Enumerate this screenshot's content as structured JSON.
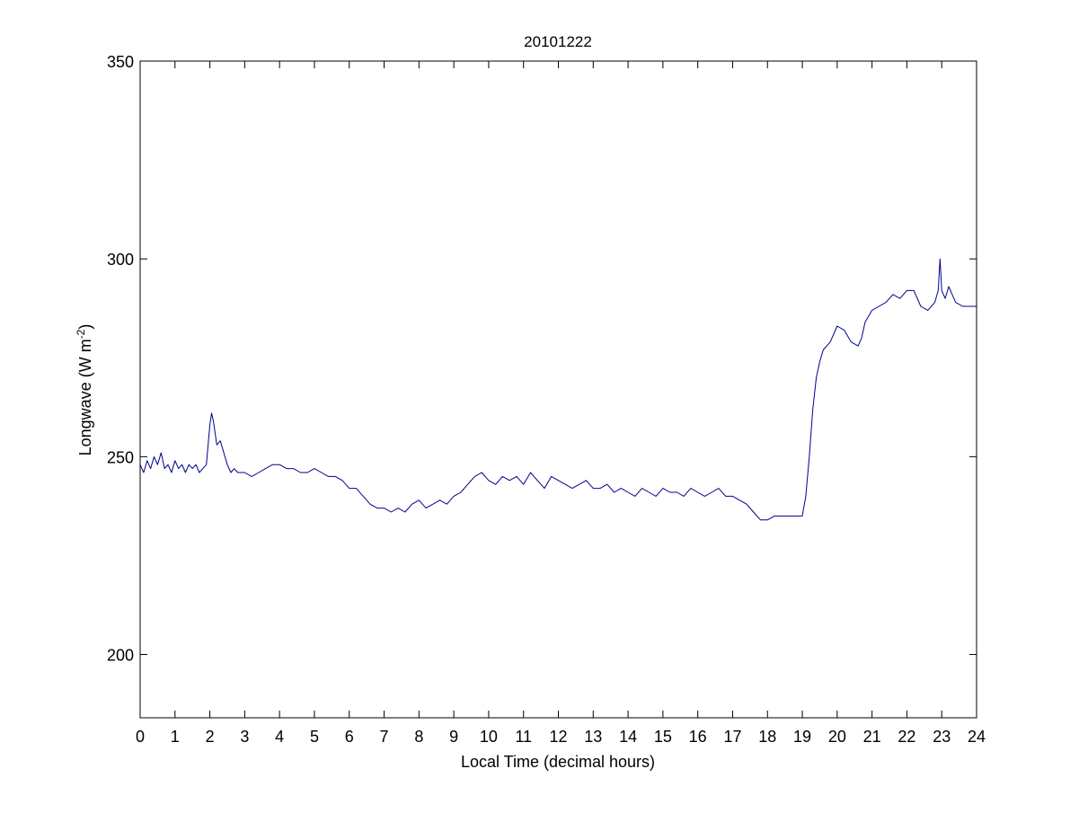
{
  "chart_data": {
    "type": "line",
    "title": "20101222",
    "xlabel": "Local Time (decimal hours)",
    "ylabel_main": "Longwave (W m",
    "ylabel_sup": "-2",
    "ylabel_close": ")",
    "xlim": [
      0,
      24
    ],
    "ylim": [
      184,
      350
    ],
    "xticks": [
      0,
      1,
      2,
      3,
      4,
      5,
      6,
      7,
      8,
      9,
      10,
      11,
      12,
      13,
      14,
      15,
      16,
      17,
      18,
      19,
      20,
      21,
      22,
      23,
      24
    ],
    "yticks": [
      200,
      250,
      300,
      350
    ],
    "grid": false,
    "line_color": "#00008b",
    "series": [
      {
        "x": [
          0,
          0.1,
          0.2,
          0.3,
          0.4,
          0.5,
          0.6,
          0.7,
          0.8,
          0.9,
          1.0,
          1.1,
          1.2,
          1.3,
          1.4,
          1.5,
          1.6,
          1.7,
          1.8,
          1.9,
          2.0,
          2.05,
          2.1,
          2.15,
          2.2,
          2.3,
          2.4,
          2.5,
          2.6,
          2.7,
          2.8,
          3.0,
          3.2,
          3.4,
          3.6,
          3.8,
          4.0,
          4.2,
          4.4,
          4.6,
          4.8,
          5.0,
          5.2,
          5.4,
          5.6,
          5.8,
          6.0,
          6.2,
          6.4,
          6.6,
          6.8,
          7.0,
          7.2,
          7.4,
          7.6,
          7.8,
          8.0,
          8.2,
          8.4,
          8.6,
          8.8,
          9.0,
          9.2,
          9.4,
          9.6,
          9.8,
          10.0,
          10.2,
          10.4,
          10.6,
          10.8,
          11.0,
          11.2,
          11.4,
          11.6,
          11.8,
          12.0,
          12.2,
          12.4,
          12.6,
          12.8,
          13.0,
          13.2,
          13.4,
          13.6,
          13.8,
          14.0,
          14.2,
          14.4,
          14.6,
          14.8,
          15.0,
          15.2,
          15.4,
          15.6,
          15.8,
          16.0,
          16.2,
          16.4,
          16.6,
          16.8,
          17.0,
          17.2,
          17.4,
          17.6,
          17.8,
          18.0,
          18.2,
          18.4,
          18.6,
          18.8,
          19.0,
          19.1,
          19.2,
          19.3,
          19.4,
          19.5,
          19.6,
          19.8,
          20.0,
          20.2,
          20.4,
          20.6,
          20.7,
          20.8,
          21.0,
          21.2,
          21.4,
          21.6,
          21.8,
          22.0,
          22.2,
          22.4,
          22.6,
          22.8,
          22.9,
          22.95,
          23.0,
          23.1,
          23.2,
          23.3,
          23.4,
          23.6,
          23.8,
          24.0
        ],
        "y": [
          248,
          246,
          249,
          247,
          250,
          248,
          251,
          247,
          248,
          246,
          249,
          247,
          248,
          246,
          248,
          247,
          248,
          246,
          247,
          248,
          258,
          261,
          259,
          256,
          253,
          254,
          251,
          248,
          246,
          247,
          246,
          246,
          245,
          246,
          247,
          248,
          248,
          247,
          247,
          246,
          246,
          247,
          246,
          245,
          245,
          244,
          242,
          242,
          240,
          238,
          237,
          237,
          236,
          237,
          236,
          238,
          239,
          237,
          238,
          239,
          238,
          240,
          241,
          243,
          245,
          246,
          244,
          243,
          245,
          244,
          245,
          243,
          246,
          244,
          242,
          245,
          244,
          243,
          242,
          243,
          244,
          242,
          242,
          243,
          241,
          242,
          241,
          240,
          242,
          241,
          240,
          242,
          241,
          241,
          240,
          242,
          241,
          240,
          241,
          242,
          240,
          240,
          239,
          238,
          236,
          234,
          234,
          235,
          235,
          235,
          235,
          235,
          240,
          250,
          262,
          270,
          274,
          277,
          279,
          283,
          282,
          279,
          278,
          280,
          284,
          287,
          288,
          289,
          291,
          290,
          292,
          292,
          288,
          287,
          289,
          292,
          300,
          292,
          290,
          293,
          291,
          289,
          288,
          288,
          288
        ]
      }
    ]
  }
}
